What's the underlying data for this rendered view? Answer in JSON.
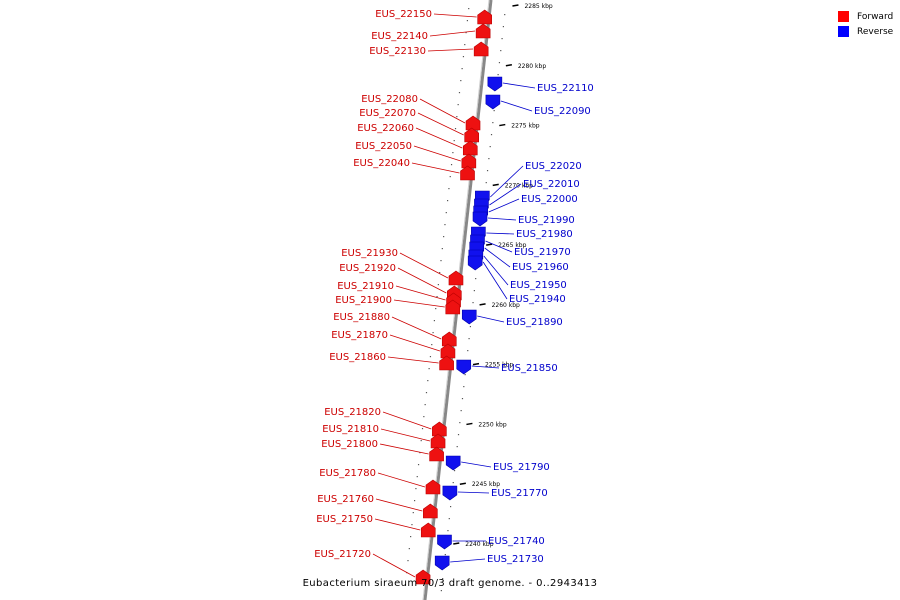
{
  "legend": {
    "items": [
      {
        "label": "Forward",
        "color": "#ff0000"
      },
      {
        "label": "Reverse",
        "color": "#0000ff"
      }
    ]
  },
  "caption": "Eubacterium siraeum 70/3 draft genome. - 0..2943413",
  "colors": {
    "forward_fill": "#ee1111",
    "forward_dark": "#bb0000",
    "forward_label": "#cc0000",
    "reverse_fill": "#1111ee",
    "reverse_dark": "#0000aa",
    "reverse_label": "#0000cc",
    "backbone": "#888888",
    "tick": "#000000"
  },
  "scale": {
    "unit": "kbp",
    "ticks": [
      {
        "kbp": 2285,
        "label": "2285 kbp"
      },
      {
        "kbp": 2280,
        "label": "2280 kbp"
      },
      {
        "kbp": 2275,
        "label": "2275 kbp"
      },
      {
        "kbp": 2270,
        "label": "2270 kbp"
      },
      {
        "kbp": 2265,
        "label": "2265 kbp"
      },
      {
        "kbp": 2260,
        "label": "2260 kbp"
      },
      {
        "kbp": 2255,
        "label": "2255 kbp"
      },
      {
        "kbp": 2250,
        "label": "2250 kbp"
      },
      {
        "kbp": 2245,
        "label": "2245 kbp"
      },
      {
        "kbp": 2240,
        "label": "2240 kbp"
      }
    ]
  },
  "genes": {
    "forward": [
      {
        "id": "EUS_22150"
      },
      {
        "id": "EUS_22140"
      },
      {
        "id": "EUS_22130"
      },
      {
        "id": "EUS_22080"
      },
      {
        "id": "EUS_22070"
      },
      {
        "id": "EUS_22060"
      },
      {
        "id": "EUS_22050"
      },
      {
        "id": "EUS_22040"
      },
      {
        "id": "EUS_21930"
      },
      {
        "id": "EUS_21920"
      },
      {
        "id": "EUS_21910"
      },
      {
        "id": "EUS_21900"
      },
      {
        "id": "EUS_21880"
      },
      {
        "id": "EUS_21870"
      },
      {
        "id": "EUS_21860"
      },
      {
        "id": "EUS_21820"
      },
      {
        "id": "EUS_21810"
      },
      {
        "id": "EUS_21800"
      },
      {
        "id": "EUS_21780"
      },
      {
        "id": "EUS_21760"
      },
      {
        "id": "EUS_21750"
      },
      {
        "id": "EUS_21720"
      }
    ],
    "reverse": [
      {
        "id": "EUS_22110"
      },
      {
        "id": "EUS_22090"
      },
      {
        "id": "EUS_22020"
      },
      {
        "id": "EUS_22010"
      },
      {
        "id": "EUS_22000"
      },
      {
        "id": "EUS_21990"
      },
      {
        "id": "EUS_21980"
      },
      {
        "id": "EUS_21970"
      },
      {
        "id": "EUS_21960"
      },
      {
        "id": "EUS_21950"
      },
      {
        "id": "EUS_21940"
      },
      {
        "id": "EUS_21890"
      },
      {
        "id": "EUS_21850"
      },
      {
        "id": "EUS_21790"
      },
      {
        "id": "EUS_21770"
      },
      {
        "id": "EUS_21740"
      },
      {
        "id": "EUS_21730"
      }
    ]
  }
}
